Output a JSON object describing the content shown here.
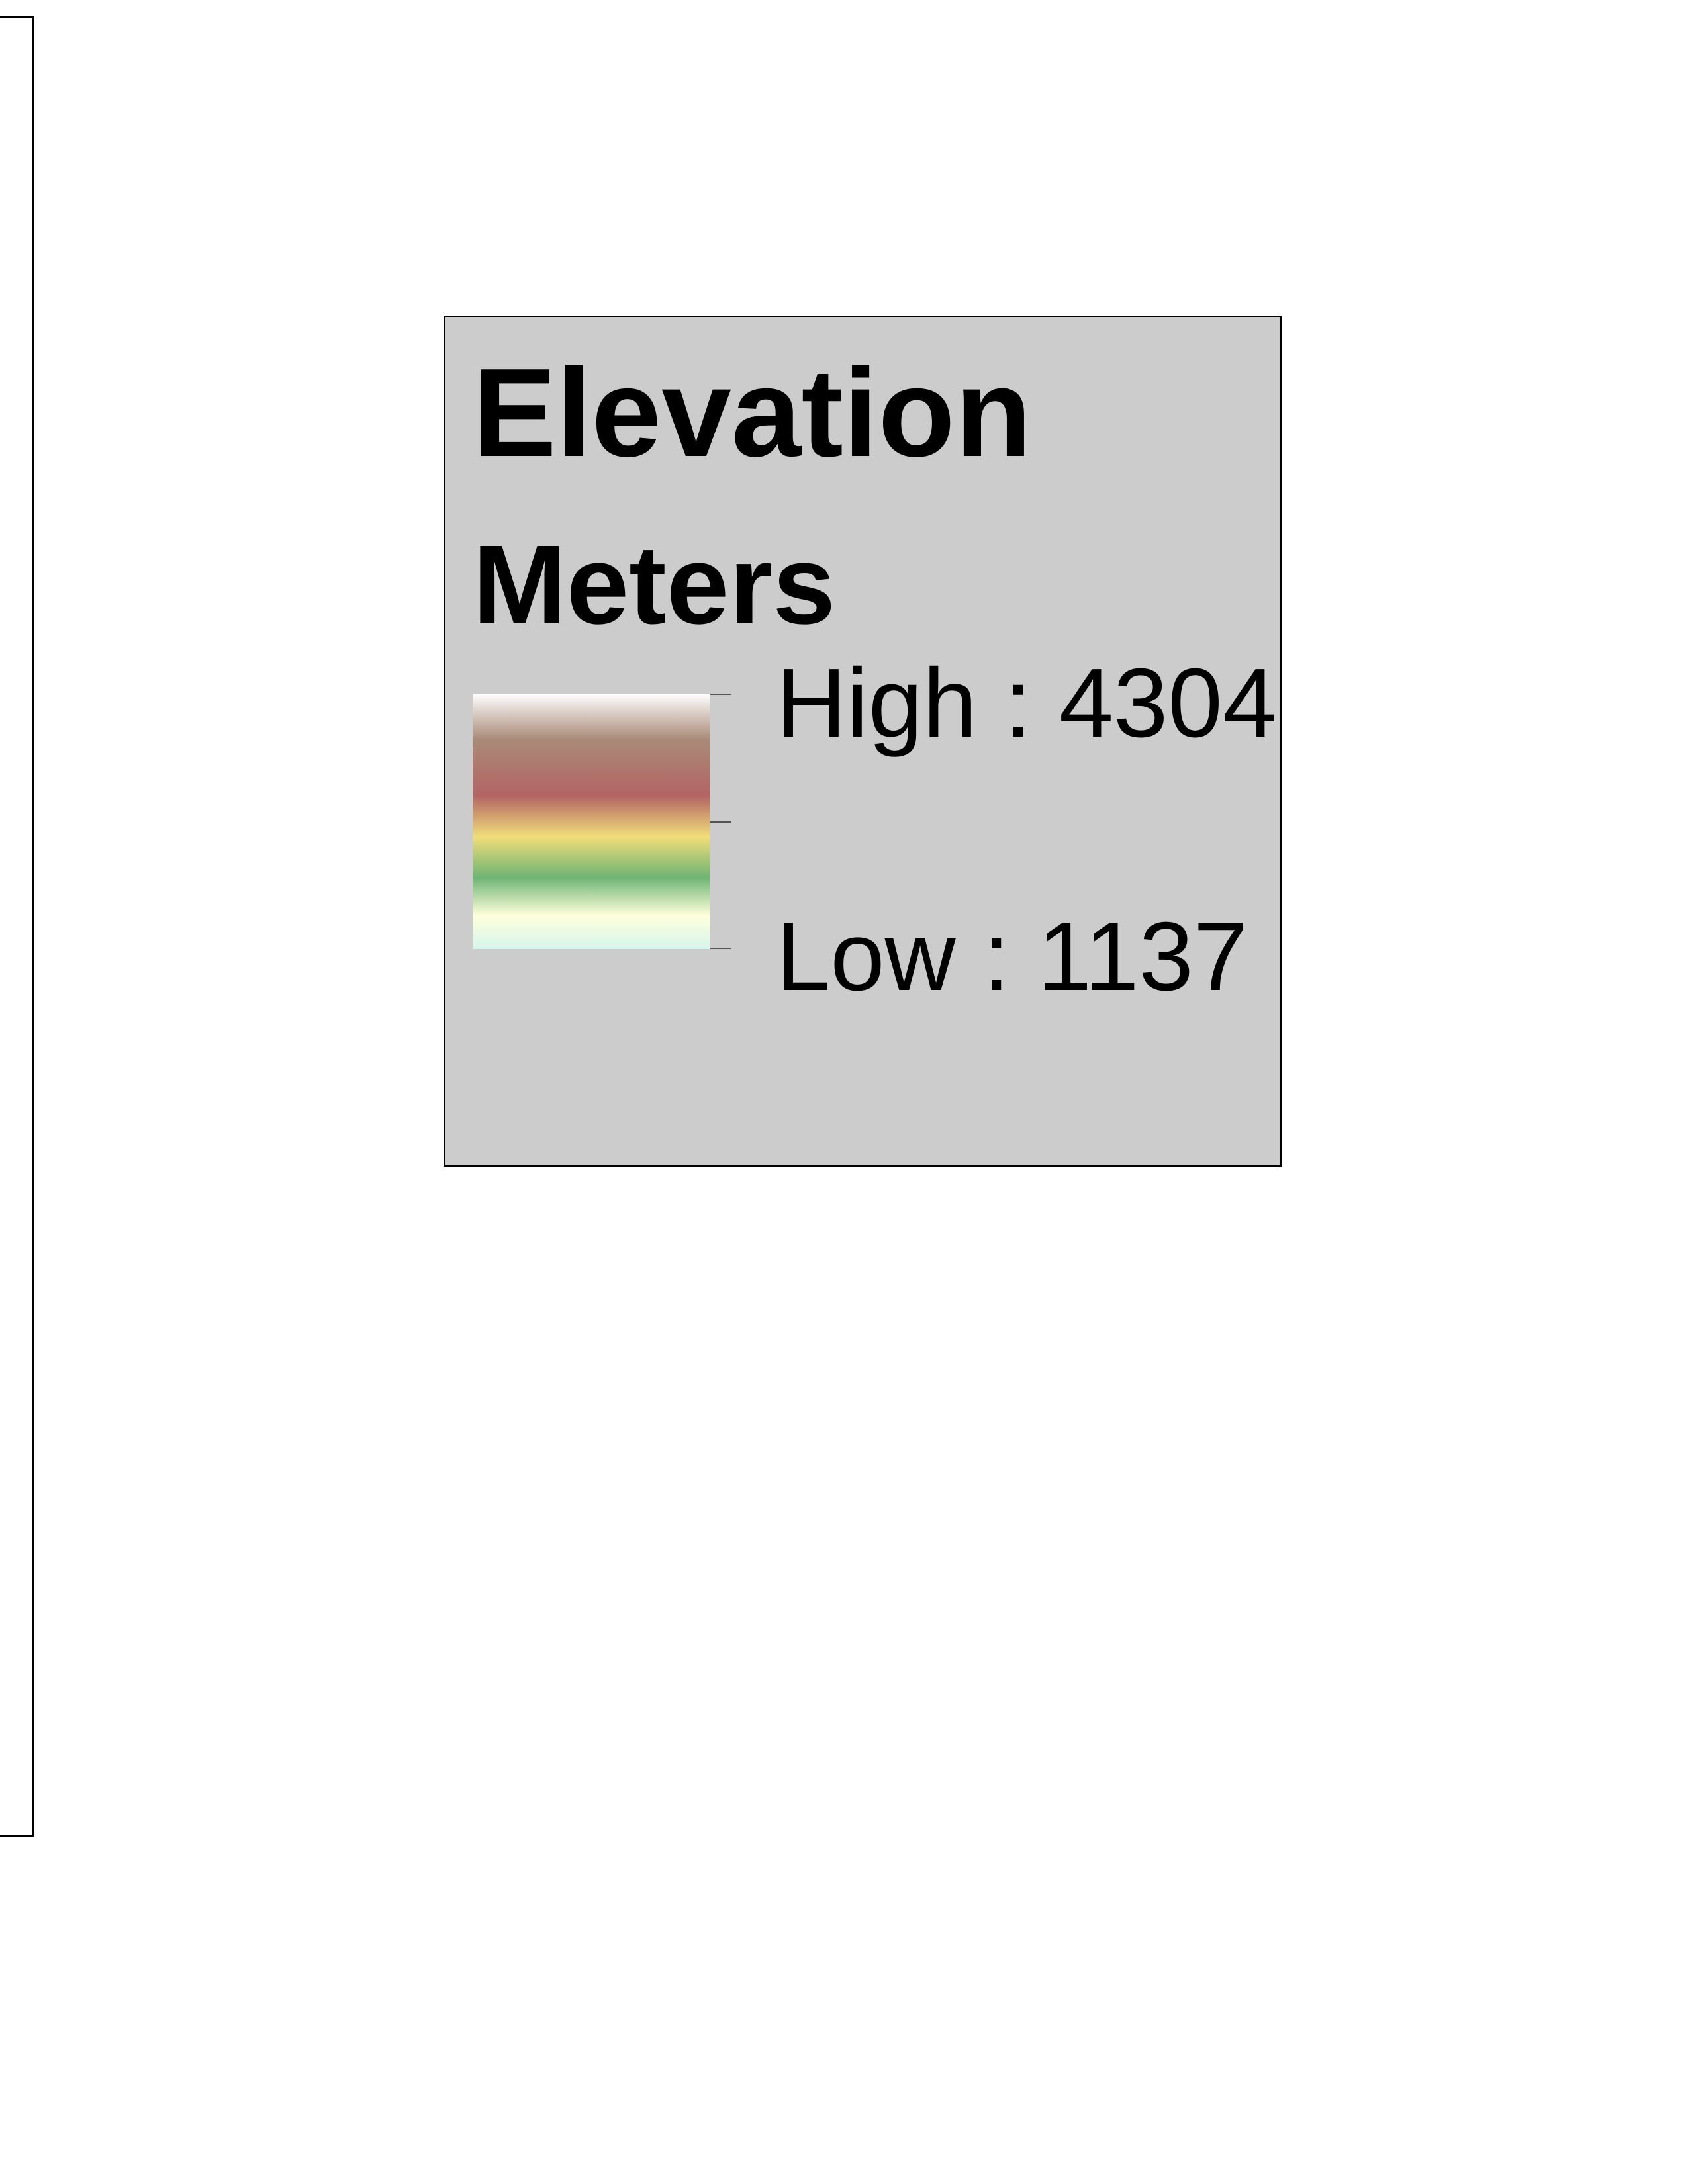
{
  "legend": {
    "title": "Elevation",
    "units": "Meters",
    "high_label": "High : 4304",
    "low_label": "Low : 1137",
    "high_value": 4304,
    "low_value": 1137,
    "panel_background": "#cccccc",
    "ramp_colors": [
      "#ffffff",
      "#a98a78",
      "#b36464",
      "#f0de7a",
      "#6fb474",
      "#ffffdc",
      "#d6f5ec"
    ]
  }
}
